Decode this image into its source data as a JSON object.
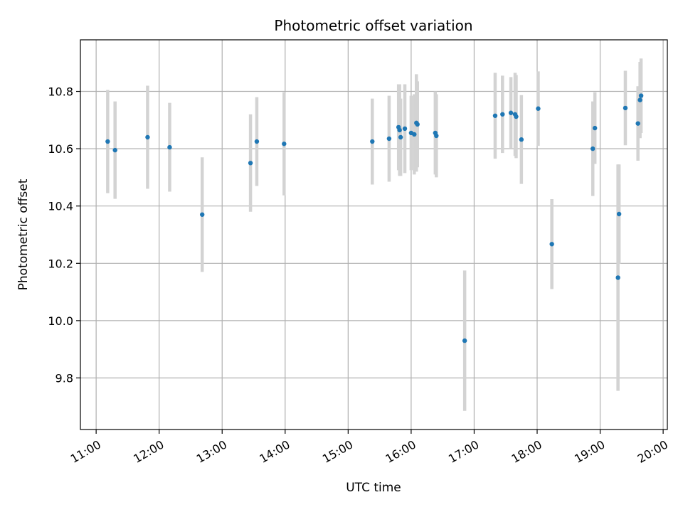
{
  "chart_data": {
    "type": "scatter",
    "title": "Photometric offset variation",
    "xlabel": "UTC time",
    "ylabel": "Photometric offset",
    "grid": true,
    "x_tick_labels": [
      "11:00",
      "12:00",
      "13:00",
      "14:00",
      "15:00",
      "16:00",
      "17:00",
      "18:00",
      "19:00",
      "20:00"
    ],
    "y_tick_labels": [
      "9.8",
      "10.0",
      "10.2",
      "10.4",
      "10.6",
      "10.8"
    ],
    "xlim": [
      "10:45",
      "20:04"
    ],
    "ylim": [
      9.62,
      10.98
    ],
    "colors": {
      "points": "#1f77b4",
      "errorbars": "#d3d3d3",
      "grid": "#b0b0b0"
    },
    "points": [
      {
        "x": "11:11",
        "y": 10.625,
        "yerr": 0.18
      },
      {
        "x": "11:18",
        "y": 10.595,
        "yerr": 0.17
      },
      {
        "x": "11:49",
        "y": 10.64,
        "yerr": 0.18
      },
      {
        "x": "12:10",
        "y": 10.605,
        "yerr": 0.155
      },
      {
        "x": "12:41",
        "y": 10.37,
        "yerr": 0.2
      },
      {
        "x": "13:27",
        "y": 10.55,
        "yerr": 0.17
      },
      {
        "x": "13:33",
        "y": 10.625,
        "yerr": 0.155
      },
      {
        "x": "13:59",
        "y": 10.617,
        "yerr": 0.18
      },
      {
        "x": "15:23",
        "y": 10.625,
        "yerr": 0.15
      },
      {
        "x": "15:39",
        "y": 10.635,
        "yerr": 0.15
      },
      {
        "x": "15:48",
        "y": 10.675,
        "yerr": 0.15
      },
      {
        "x": "15:49",
        "y": 10.665,
        "yerr": 0.16
      },
      {
        "x": "15:50",
        "y": 10.64,
        "yerr": 0.135
      },
      {
        "x": "15:54",
        "y": 10.67,
        "yerr": 0.155
      },
      {
        "x": "16:00",
        "y": 10.655,
        "yerr": 0.13
      },
      {
        "x": "16:03",
        "y": 10.65,
        "yerr": 0.14
      },
      {
        "x": "16:05",
        "y": 10.69,
        "yerr": 0.17
      },
      {
        "x": "16:06",
        "y": 10.685,
        "yerr": 0.15
      },
      {
        "x": "16:23",
        "y": 10.655,
        "yerr": 0.145
      },
      {
        "x": "16:24",
        "y": 10.645,
        "yerr": 0.145
      },
      {
        "x": "16:51",
        "y": 9.93,
        "yerr": 0.245
      },
      {
        "x": "17:20",
        "y": 10.715,
        "yerr": 0.15
      },
      {
        "x": "17:27",
        "y": 10.72,
        "yerr": 0.135
      },
      {
        "x": "17:35",
        "y": 10.725,
        "yerr": 0.125
      },
      {
        "x": "17:39",
        "y": 10.72,
        "yerr": 0.145
      },
      {
        "x": "17:40",
        "y": 10.712,
        "yerr": 0.145
      },
      {
        "x": "17:45",
        "y": 10.632,
        "yerr": 0.155
      },
      {
        "x": "18:01",
        "y": 10.74,
        "yerr": 0.13
      },
      {
        "x": "18:14",
        "y": 10.267,
        "yerr": 0.157
      },
      {
        "x": "18:53",
        "y": 10.6,
        "yerr": 0.165
      },
      {
        "x": "18:55",
        "y": 10.672,
        "yerr": 0.125
      },
      {
        "x": "19:17",
        "y": 10.15,
        "yerr": 0.395
      },
      {
        "x": "19:18",
        "y": 10.372,
        "yerr": 0.173
      },
      {
        "x": "19:24",
        "y": 10.742,
        "yerr": 0.13
      },
      {
        "x": "19:36",
        "y": 10.688,
        "yerr": 0.13
      },
      {
        "x": "19:38",
        "y": 10.77,
        "yerr": 0.133
      },
      {
        "x": "19:39",
        "y": 10.785,
        "yerr": 0.13
      }
    ]
  }
}
